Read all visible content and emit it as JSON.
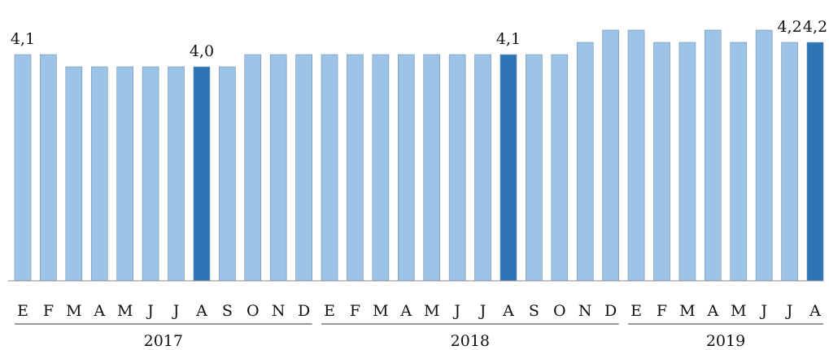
{
  "chart_data": {
    "type": "bar",
    "categories": [
      "E",
      "F",
      "M",
      "A",
      "M",
      "J",
      "J",
      "A",
      "S",
      "O",
      "N",
      "D",
      "E",
      "F",
      "M",
      "A",
      "M",
      "J",
      "J",
      "A",
      "S",
      "O",
      "N",
      "D",
      "E",
      "F",
      "M",
      "A",
      "M",
      "J",
      "J",
      "A"
    ],
    "values": [
      4.1,
      4.1,
      4.0,
      4.0,
      4.0,
      4.0,
      4.0,
      4.0,
      4.0,
      4.1,
      4.1,
      4.1,
      4.1,
      4.1,
      4.1,
      4.1,
      4.1,
      4.1,
      4.1,
      4.1,
      4.1,
      4.1,
      4.2,
      4.3,
      4.3,
      4.2,
      4.2,
      4.3,
      4.2,
      4.3,
      4.2,
      4.2
    ],
    "value_labels": [
      "4,1",
      null,
      null,
      null,
      null,
      null,
      null,
      "4,0",
      null,
      null,
      null,
      null,
      null,
      null,
      null,
      null,
      null,
      null,
      null,
      "4,1",
      null,
      null,
      null,
      null,
      null,
      null,
      null,
      null,
      null,
      null,
      "4,2",
      "4,2"
    ],
    "colors": [
      "#9dc3e6",
      "#9dc3e6",
      "#9dc3e6",
      "#9dc3e6",
      "#9dc3e6",
      "#9dc3e6",
      "#9dc3e6",
      "#2e75b6",
      "#9dc3e6",
      "#9dc3e6",
      "#9dc3e6",
      "#9dc3e6",
      "#9dc3e6",
      "#9dc3e6",
      "#9dc3e6",
      "#9dc3e6",
      "#9dc3e6",
      "#9dc3e6",
      "#9dc3e6",
      "#2e75b6",
      "#9dc3e6",
      "#9dc3e6",
      "#9dc3e6",
      "#9dc3e6",
      "#9dc3e6",
      "#9dc3e6",
      "#9dc3e6",
      "#9dc3e6",
      "#9dc3e6",
      "#9dc3e6",
      "#9dc3e6",
      "#2e75b6"
    ],
    "groups": [
      {
        "label": "2017",
        "count": 12
      },
      {
        "label": "2018",
        "count": 12
      },
      {
        "label": "2019",
        "count": 8
      }
    ],
    "ylim": [
      2.25,
      4.4
    ]
  }
}
